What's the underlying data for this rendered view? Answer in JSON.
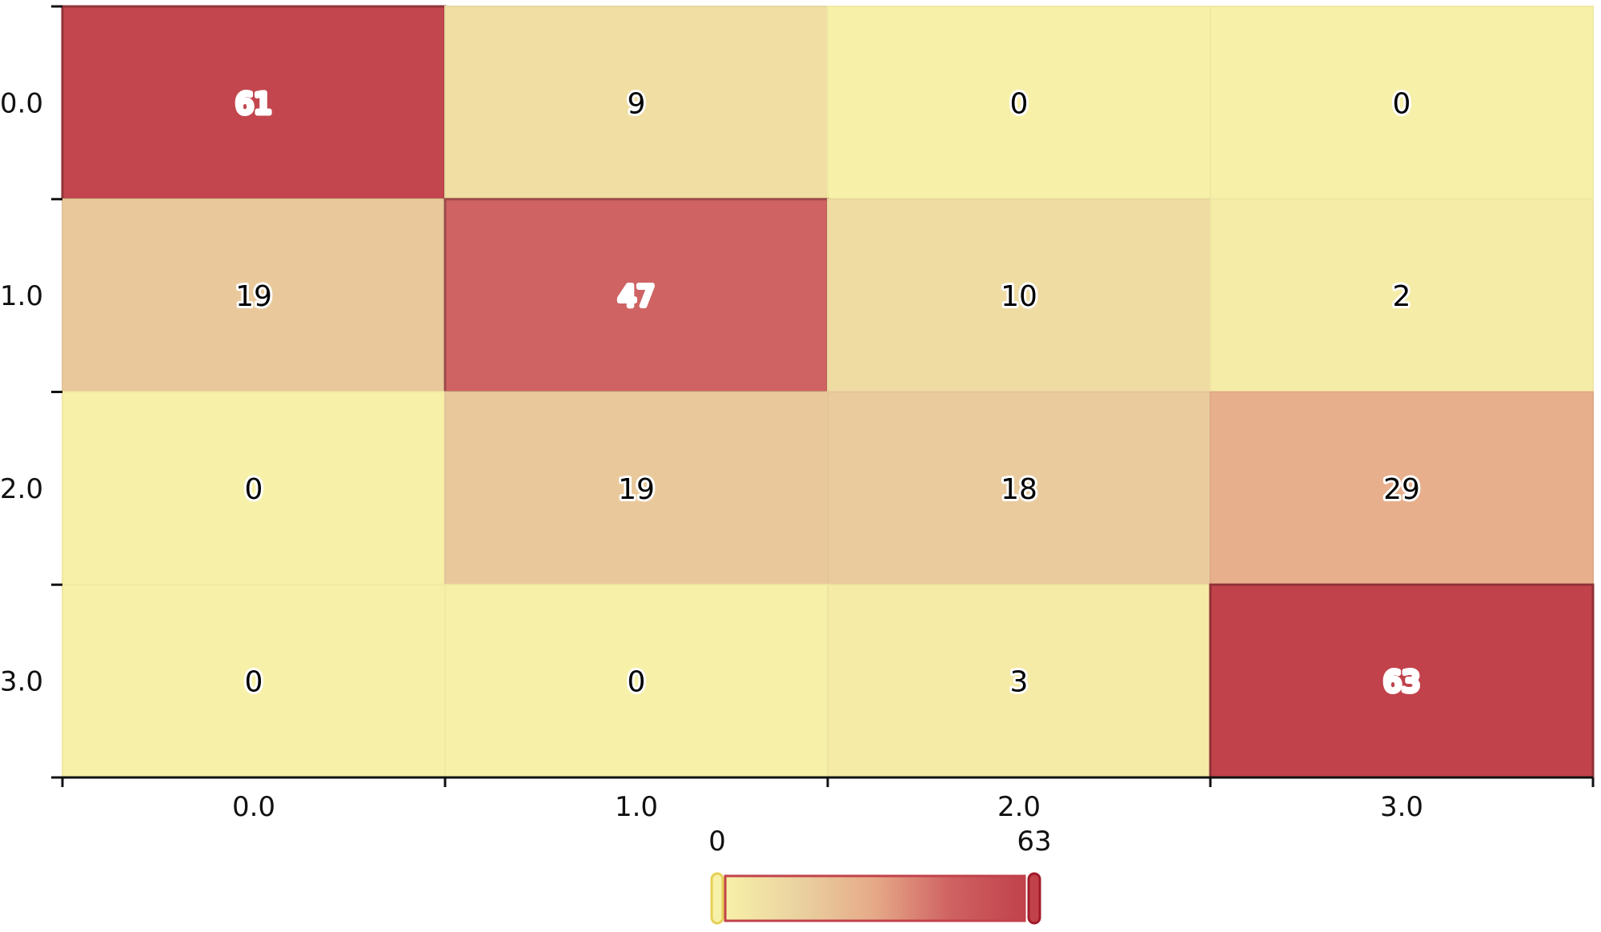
{
  "chart_data": {
    "type": "heatmap",
    "x_categories": [
      "0.0",
      "1.0",
      "2.0",
      "3.0"
    ],
    "y_categories": [
      "0.0",
      "1.0",
      "2.0",
      "3.0"
    ],
    "values": [
      [
        61,
        9,
        0,
        0
      ],
      [
        19,
        47,
        10,
        2
      ],
      [
        0,
        19,
        18,
        29
      ],
      [
        0,
        0,
        3,
        63
      ]
    ],
    "visual_map": {
      "min": 0,
      "max": 63,
      "min_label": "0",
      "max_label": "63",
      "colors": [
        "#f7f0a8",
        "#ead1a0",
        "#e6a988",
        "#cf6262",
        "#c1424b"
      ]
    }
  }
}
